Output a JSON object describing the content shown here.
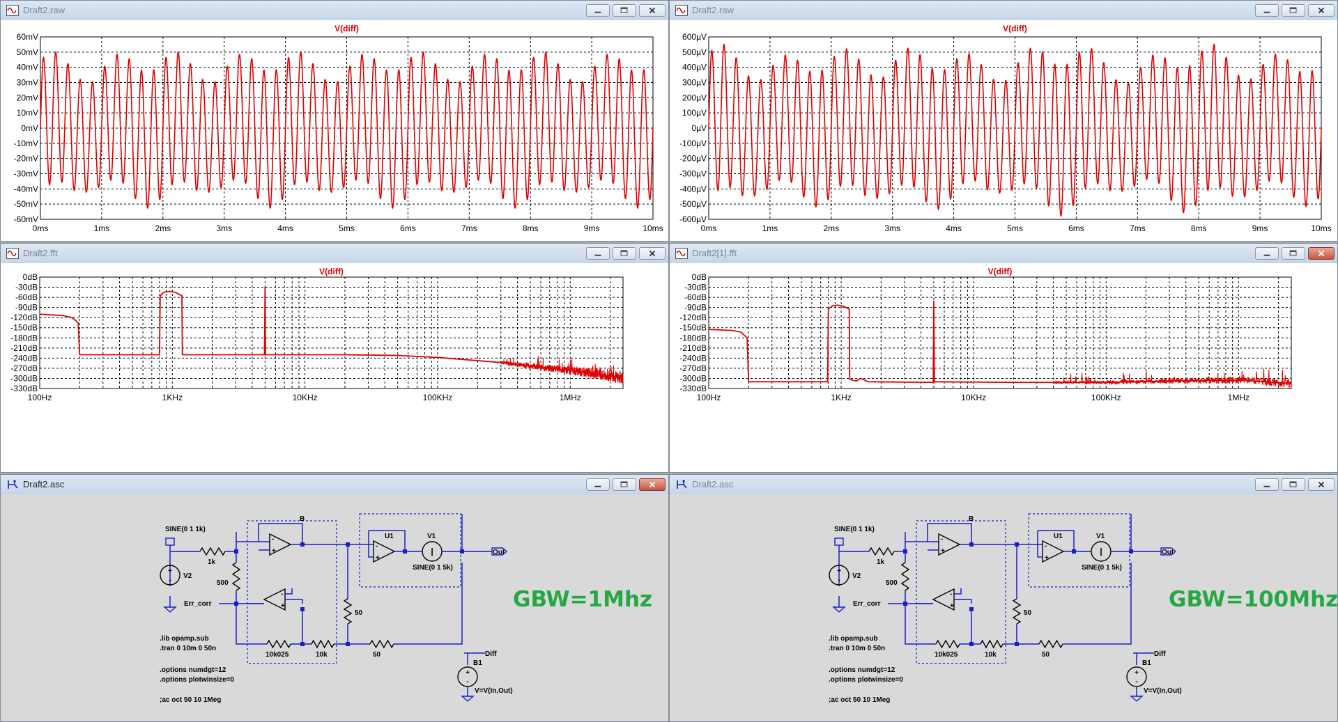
{
  "windows": {
    "raw1": {
      "title": "Draft2.raw"
    },
    "raw2": {
      "title": "Draft2.raw"
    },
    "fft1": {
      "title": "Draft2.fft"
    },
    "fft2": {
      "title": "Draft2[1].fft"
    },
    "asc1": {
      "title": "Draft2.asc"
    },
    "asc2": {
      "title": "Draft2.asc"
    }
  },
  "colors": {
    "trace": "#e00000",
    "wire": "#1c1cc8",
    "grid": "#000000",
    "annotation": "#25a844"
  },
  "icons": {
    "waveform": "waveform-icon",
    "schematic": "schematic-icon",
    "minimize": "minimize-icon",
    "maximize": "maximize-icon",
    "close": "close-icon"
  },
  "chart_data": [
    {
      "type": "line",
      "title": "V(diff)",
      "x_ticks": [
        "0ms",
        "1ms",
        "2ms",
        "3ms",
        "4ms",
        "5ms",
        "6ms",
        "7ms",
        "8ms",
        "9ms",
        "10ms"
      ],
      "y_ticks": [
        "60mV",
        "50mV",
        "40mV",
        "30mV",
        "20mV",
        "10mV",
        "0mV",
        "-10mV",
        "-20mV",
        "-30mV",
        "-40mV",
        "-50mV",
        "-60mV"
      ],
      "xlim": [
        0,
        10
      ],
      "ylim": [
        -60,
        60
      ],
      "grid": true,
      "series": [
        {
          "freq_khz": 5,
          "beat_khz": 1,
          "amplitude": 50
        }
      ]
    },
    {
      "type": "line",
      "title": "V(diff)",
      "x_ticks": [
        "0ms",
        "1ms",
        "2ms",
        "3ms",
        "4ms",
        "5ms",
        "6ms",
        "7ms",
        "8ms",
        "9ms",
        "10ms"
      ],
      "y_ticks": [
        "600µV",
        "500µV",
        "400µV",
        "300µV",
        "200µV",
        "100µV",
        "0µV",
        "-100µV",
        "-200µV",
        "-300µV",
        "-400µV",
        "-500µV",
        "-600µV"
      ],
      "xlim": [
        0,
        10
      ],
      "ylim": [
        -600,
        600
      ],
      "grid": true,
      "series": [
        {
          "freq_khz": 5,
          "beat_khz": 1,
          "amplitude": 520
        }
      ]
    },
    {
      "type": "line",
      "title": "V(diff)",
      "x_log": true,
      "x_ticks": [
        "100Hz",
        "1KHz",
        "10KHz",
        "100KHz",
        "1MHz"
      ],
      "y_ticks": [
        "0dB",
        "-30dB",
        "-60dB",
        "-90dB",
        "-120dB",
        "-150dB",
        "-180dB",
        "-210dB",
        "-240dB",
        "-270dB",
        "-300dB",
        "-330dB"
      ],
      "xlim": [
        100,
        2500000
      ],
      "ylim": [
        -330,
        0
      ],
      "grid": true,
      "series": [
        {
          "points": [
            [
              100,
              -110
            ],
            [
              150,
              -114
            ],
            [
              175,
              -120
            ],
            [
              195,
              -135
            ],
            [
              200,
              -230
            ],
            [
              800,
              -230
            ],
            [
              810,
              -55
            ],
            [
              860,
              -45
            ],
            [
              950,
              -42
            ],
            [
              1050,
              -45
            ],
            [
              1180,
              -55
            ],
            [
              1190,
              -230
            ],
            [
              4950,
              -230
            ],
            [
              5000,
              -30
            ],
            [
              5040,
              -230
            ],
            [
              20000,
              -230
            ],
            [
              50000,
              -232
            ],
            [
              100000,
              -238
            ],
            [
              300000,
              -253
            ],
            [
              700000,
              -270
            ],
            [
              1500000,
              -285
            ],
            [
              2500000,
              -300
            ]
          ]
        }
      ]
    },
    {
      "type": "line",
      "title": "V(diff)",
      "x_log": true,
      "x_ticks": [
        "100Hz",
        "1KHz",
        "10KHz",
        "100KHz",
        "1MHz"
      ],
      "y_ticks": [
        "0dB",
        "-30dB",
        "-60dB",
        "-90dB",
        "-120dB",
        "-150dB",
        "-180dB",
        "-210dB",
        "-240dB",
        "-270dB",
        "-300dB",
        "-330dB"
      ],
      "xlim": [
        100,
        2500000
      ],
      "ylim": [
        -330,
        0
      ],
      "grid": true,
      "series": [
        {
          "points": [
            [
              100,
              -155
            ],
            [
              150,
              -158
            ],
            [
              175,
              -163
            ],
            [
              195,
              -180
            ],
            [
              200,
              -310
            ],
            [
              790,
              -310
            ],
            [
              800,
              -95
            ],
            [
              860,
              -85
            ],
            [
              950,
              -83
            ],
            [
              1050,
              -87
            ],
            [
              1150,
              -95
            ],
            [
              1160,
              -303
            ],
            [
              1300,
              -308
            ],
            [
              1400,
              -300
            ],
            [
              1600,
              -310
            ],
            [
              4950,
              -312
            ],
            [
              5000,
              -70
            ],
            [
              5050,
              -310
            ],
            [
              20000,
              -312
            ],
            [
              100000,
              -312
            ],
            [
              300000,
              -308
            ],
            [
              1000000,
              -305
            ],
            [
              2500000,
              -315
            ]
          ]
        }
      ]
    }
  ],
  "schematic": {
    "labels": {
      "source": "SINE(0 1 1k)",
      "v2": "V2",
      "r_in": "1k",
      "r_shunt": "500",
      "err": "Err_corr",
      "block": "B",
      "r_fb": "10k025",
      "r_10k": "10k",
      "r_vert": "50",
      "r_out": "50",
      "u1": "U1",
      "v1": "V1",
      "v1_value": "SINE(0 1 5k)",
      "out": "Out",
      "diff": "Diff",
      "b1": "B1",
      "b1_expr": "V=V(In,Out)"
    },
    "directives": [
      ".lib opamp.sub",
      ".tran 0 10m 0 50n",
      ".options numdgt=12",
      ".options plotwinsize=0",
      ";ac oct 50 10 1Meg"
    ],
    "gbw_left": "GBW=1Mhz",
    "gbw_right": "GBW=100Mhz"
  }
}
